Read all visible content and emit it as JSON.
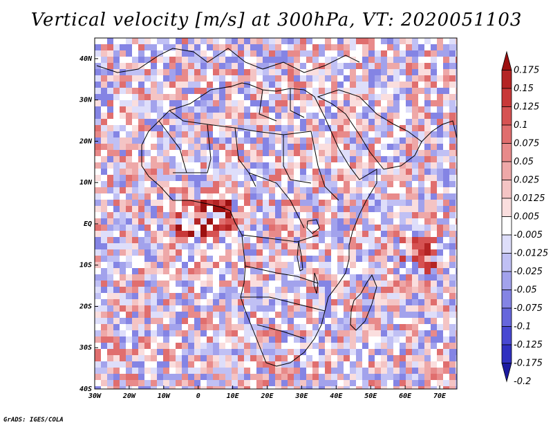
{
  "title": "Vertical velocity [m/s] at 300hPa, VT: 2020051103",
  "credit": "GrADS: IGES/COLA",
  "map": {
    "lon_range": [
      -30,
      75
    ],
    "lat_range": [
      -40,
      45
    ],
    "lon_ticks": [
      {
        "value": -30,
        "label": "30W"
      },
      {
        "value": -20,
        "label": "20W"
      },
      {
        "value": -10,
        "label": "10W"
      },
      {
        "value": 0,
        "label": "0"
      },
      {
        "value": 10,
        "label": "10E"
      },
      {
        "value": 20,
        "label": "20E"
      },
      {
        "value": 30,
        "label": "30E"
      },
      {
        "value": 40,
        "label": "40E"
      },
      {
        "value": 50,
        "label": "50E"
      },
      {
        "value": 60,
        "label": "60E"
      },
      {
        "value": 70,
        "label": "70E"
      }
    ],
    "lat_ticks": [
      {
        "value": 40,
        "label": "40N"
      },
      {
        "value": 30,
        "label": "30N"
      },
      {
        "value": 20,
        "label": "20N"
      },
      {
        "value": 10,
        "label": "10N"
      },
      {
        "value": 0,
        "label": "EQ"
      },
      {
        "value": -10,
        "label": "10S"
      },
      {
        "value": -20,
        "label": "20S"
      },
      {
        "value": -30,
        "label": "30S"
      },
      {
        "value": -40,
        "label": "40S"
      }
    ]
  },
  "colorbar": {
    "colors": [
      "#1c1aa0",
      "#3030c0",
      "#4848d2",
      "#6666dc",
      "#8484e4",
      "#a2a2ec",
      "#c0c0f4",
      "#dedefa",
      "#ffffff",
      "#fadede",
      "#f4c4c4",
      "#eea8a8",
      "#e88a8a",
      "#e06e6e",
      "#d65252",
      "#c83838",
      "#b42424",
      "#9c1010"
    ],
    "labels": [
      "0.175",
      "0.15",
      "0.125",
      "0.1",
      "0.075",
      "0.05",
      "0.025",
      "0.0125",
      "0.005",
      "-0.005",
      "-0.0125",
      "-0.025",
      "-0.05",
      "-0.075",
      "-0.1",
      "-0.125",
      "-0.175",
      "-0.2"
    ],
    "units": "m/s"
  }
}
